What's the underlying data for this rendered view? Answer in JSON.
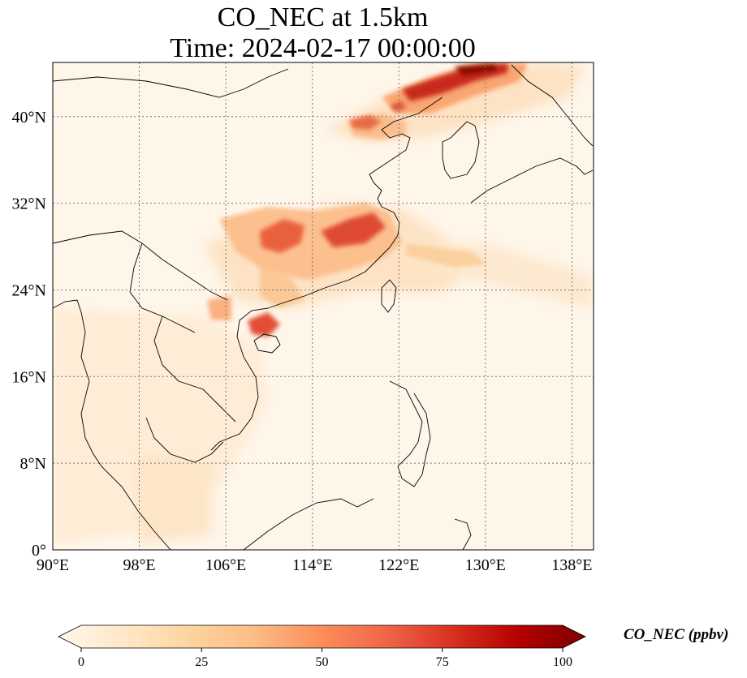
{
  "title": {
    "line1": "CO_NEC at 1.5km",
    "line2": "Time: 2024-02-17 00:00:00"
  },
  "map": {
    "lon_range": [
      90,
      140
    ],
    "lat_range": [
      0,
      45
    ],
    "x_ticks": [
      "90°E",
      "98°E",
      "106°E",
      "114°E",
      "122°E",
      "130°E",
      "138°E"
    ],
    "x_tick_values": [
      90,
      98,
      106,
      114,
      122,
      130,
      138
    ],
    "y_ticks": [
      "0°",
      "8°N",
      "16°N",
      "24°N",
      "32°N",
      "40°N"
    ],
    "y_tick_values": [
      0,
      8,
      16,
      24,
      32,
      40
    ],
    "gridlines": "dotted",
    "variable": "CO_NEC",
    "level": "1.5km"
  },
  "colorbar": {
    "label": "CO_NEC (ppbv)",
    "ticks": [
      "0",
      "25",
      "50",
      "75",
      "100"
    ],
    "tick_values": [
      0,
      25,
      50,
      75,
      100
    ],
    "range": [
      0,
      100
    ],
    "extend": "both",
    "colormap": "OrRd",
    "colors": [
      "#fff7ec",
      "#fee8c8",
      "#fdd49e",
      "#fdbb84",
      "#fc8d59",
      "#ef6548",
      "#d7301f",
      "#b30000",
      "#7f0000"
    ]
  }
}
